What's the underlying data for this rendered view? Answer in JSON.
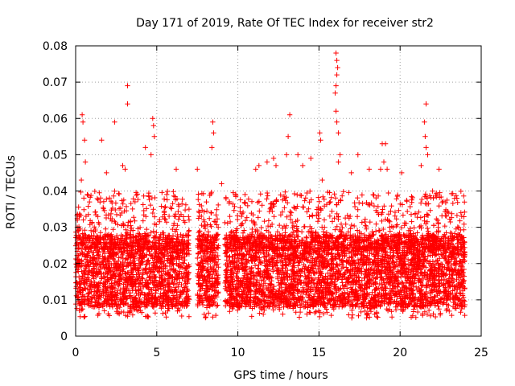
{
  "chart_data": {
    "type": "scatter",
    "title": "Day 171 of 2019, Rate Of TEC Index for receiver str2",
    "xlabel": "GPS time / hours",
    "ylabel": "ROTI / TECUs",
    "xlim": [
      0,
      25
    ],
    "ylim": [
      0,
      0.08
    ],
    "xticks": [
      0,
      5,
      10,
      15,
      20,
      25
    ],
    "xtick_labels": [
      "0",
      "5",
      "10",
      "15",
      "20",
      "25"
    ],
    "yticks": [
      0,
      0.01,
      0.02,
      0.03,
      0.04,
      0.05,
      0.06,
      0.07,
      0.08
    ],
    "ytick_labels": [
      "0",
      "0.01",
      "0.02",
      "0.03",
      "0.04",
      "0.05",
      "0.06",
      "0.07",
      "0.08"
    ],
    "grid": true,
    "marker": "+",
    "series_color": "#ff0000",
    "x_coverage_hours": [
      0,
      24
    ],
    "x_gaps_hours": [
      [
        7.0,
        7.5
      ],
      [
        8.8,
        9.2
      ]
    ],
    "y_core_range": [
      0.008,
      0.028
    ],
    "points": [
      [
        0.35,
        0.043
      ],
      [
        0.4,
        0.061
      ],
      [
        0.45,
        0.059
      ],
      [
        0.55,
        0.054
      ],
      [
        0.6,
        0.048
      ],
      [
        1.6,
        0.054
      ],
      [
        1.9,
        0.045
      ],
      [
        2.4,
        0.059
      ],
      [
        2.9,
        0.047
      ],
      [
        3.05,
        0.046
      ],
      [
        3.2,
        0.069
      ],
      [
        3.2,
        0.064
      ],
      [
        4.3,
        0.052
      ],
      [
        4.65,
        0.05
      ],
      [
        4.75,
        0.06
      ],
      [
        4.8,
        0.058
      ],
      [
        4.85,
        0.055
      ],
      [
        6.2,
        0.046
      ],
      [
        7.5,
        0.046
      ],
      [
        8.45,
        0.059
      ],
      [
        8.5,
        0.056
      ],
      [
        8.4,
        0.052
      ],
      [
        9.0,
        0.042
      ],
      [
        11.1,
        0.046
      ],
      [
        11.3,
        0.047
      ],
      [
        11.8,
        0.048
      ],
      [
        12.2,
        0.049
      ],
      [
        12.35,
        0.047
      ],
      [
        13.0,
        0.05
      ],
      [
        13.2,
        0.061
      ],
      [
        13.1,
        0.055
      ],
      [
        13.7,
        0.05
      ],
      [
        14.0,
        0.047
      ],
      [
        14.5,
        0.049
      ],
      [
        15.05,
        0.056
      ],
      [
        15.1,
        0.054
      ],
      [
        15.2,
        0.043
      ],
      [
        16.05,
        0.078
      ],
      [
        16.1,
        0.076
      ],
      [
        16.15,
        0.074
      ],
      [
        16.1,
        0.072
      ],
      [
        16.05,
        0.069
      ],
      [
        16.0,
        0.067
      ],
      [
        16.05,
        0.062
      ],
      [
        16.1,
        0.059
      ],
      [
        16.2,
        0.056
      ],
      [
        16.3,
        0.05
      ],
      [
        16.2,
        0.048
      ],
      [
        17.4,
        0.05
      ],
      [
        17.0,
        0.045
      ],
      [
        18.1,
        0.046
      ],
      [
        18.9,
        0.053
      ],
      [
        19.1,
        0.053
      ],
      [
        19.0,
        0.048
      ],
      [
        18.8,
        0.046
      ],
      [
        19.2,
        0.046
      ],
      [
        20.1,
        0.045
      ],
      [
        21.6,
        0.064
      ],
      [
        21.5,
        0.059
      ],
      [
        21.55,
        0.055
      ],
      [
        21.6,
        0.052
      ],
      [
        21.7,
        0.05
      ],
      [
        21.3,
        0.047
      ],
      [
        22.4,
        0.046
      ],
      [
        23.5,
        0.038
      ],
      [
        23.75,
        0.034
      ],
      [
        23.8,
        0.033
      ]
    ]
  }
}
